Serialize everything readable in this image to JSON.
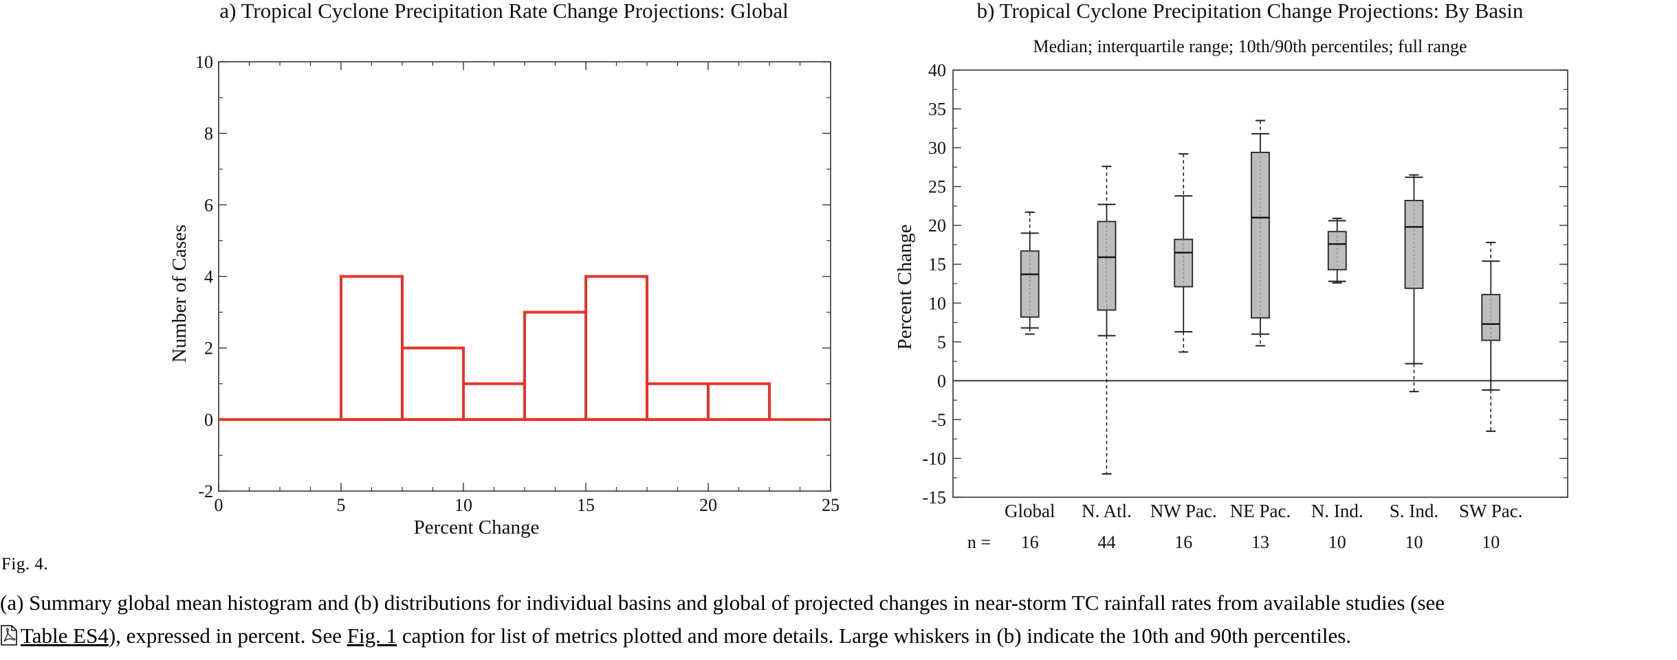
{
  "chart_data": [
    {
      "type": "bar",
      "title": "a)   Tropical Cyclone Precipitation Rate Change Projections:  Global",
      "xlabel": "Percent Change",
      "ylabel": "Number of Cases",
      "xlim": [
        0,
        25
      ],
      "ylim": [
        -2,
        10
      ],
      "x_ticks": [
        0,
        5,
        10,
        15,
        20,
        25
      ],
      "y_ticks": [
        -2,
        0,
        2,
        4,
        6,
        8,
        10
      ],
      "bin_edges": [
        0,
        2.5,
        5,
        7.5,
        10,
        12.5,
        15,
        17.5,
        20,
        22.5,
        25
      ],
      "values": [
        0,
        0,
        4,
        2,
        1,
        3,
        4,
        1,
        1,
        0
      ],
      "color": "#e8332a",
      "grid": false
    },
    {
      "type": "box",
      "title": "b)   Tropical Cyclone Precipitation Change Projections:  By Basin",
      "subtitle": "Median; interquartile range; 10th/90th percentiles; full range",
      "ylabel": "Percent Change",
      "ylim": [
        -15,
        40
      ],
      "y_ticks": [
        -15,
        -10,
        -5,
        0,
        5,
        10,
        15,
        20,
        25,
        30,
        35,
        40
      ],
      "n_label": "n =",
      "categories": [
        "Global",
        "N. Atl.",
        "NW Pac.",
        "NE Pac.",
        "N. Ind.",
        "S. Ind.",
        "SW Pac."
      ],
      "n": [
        "16",
        "44",
        "16",
        "13",
        "10",
        "10",
        "10"
      ],
      "boxes": [
        {
          "min": 6,
          "p10": 6.8,
          "q1": 8.2,
          "median": 13.7,
          "q3": 16.7,
          "p90": 19,
          "max": 21.7
        },
        {
          "min": -12,
          "p10": 5.8,
          "q1": 9.1,
          "median": 15.9,
          "q3": 20.5,
          "p90": 22.7,
          "max": 27.6
        },
        {
          "min": 3.7,
          "p10": 6.3,
          "q1": 12.1,
          "median": 16.5,
          "q3": 18.2,
          "p90": 23.8,
          "max": 29.2
        },
        {
          "min": 4.5,
          "p10": 6,
          "q1": 8.1,
          "median": 21,
          "q3": 29.4,
          "p90": 31.8,
          "max": 33.5
        },
        {
          "min": 12.6,
          "p10": 12.8,
          "q1": 14.3,
          "median": 17.6,
          "q3": 19.2,
          "p90": 20.6,
          "max": 20.9
        },
        {
          "min": -1.4,
          "p10": 2.2,
          "q1": 11.9,
          "median": 19.8,
          "q3": 23.2,
          "p90": 26.2,
          "max": 26.5
        },
        {
          "min": -6.5,
          "p10": -1.2,
          "q1": 5.2,
          "median": 7.3,
          "q3": 11.1,
          "p90": 15.4,
          "max": 17.8
        }
      ],
      "box_fill": "#bdbdbd",
      "reference_line": 0,
      "grid": false
    }
  ],
  "caption": {
    "label": "Fig. 4.",
    "line1": "(a) Summary global mean histogram and (b) distributions for individual basins and global of projected changes in near-storm TC rainfall rates from available studies (see",
    "line2_link_table": "Table ES4",
    "line2_part1": "), expressed in percent. See ",
    "line2_link_fig": "Fig. 1",
    "line2_part2": " caption for list of metrics plotted and more details. Large whiskers in (b) indicate the 10th and 90th percentiles."
  },
  "icons": {
    "pdf": "pdf-file-icon"
  }
}
